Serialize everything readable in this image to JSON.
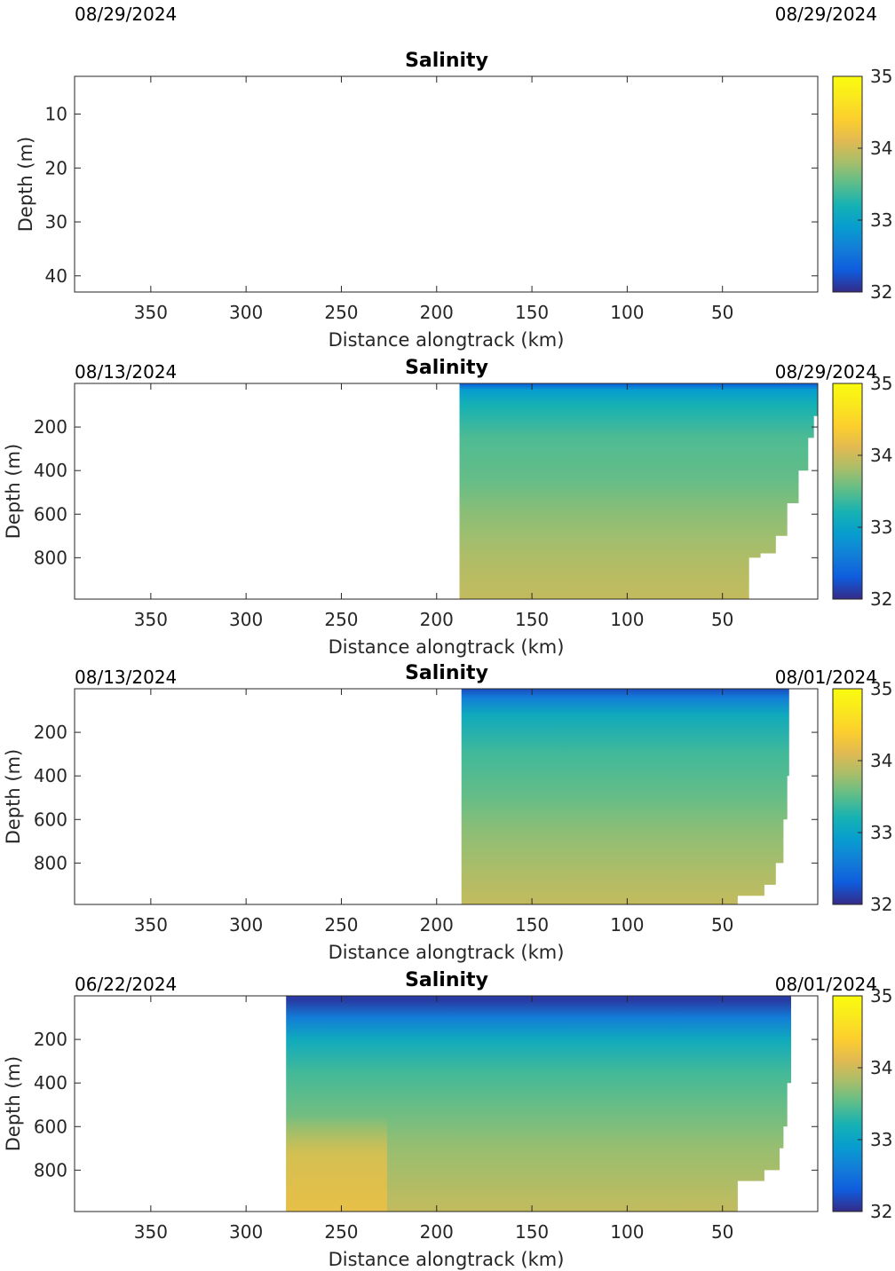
{
  "chart_data": [
    {
      "type": "heatmap",
      "title": "Salinity",
      "date_left": "08/29/2024",
      "date_right": "08/29/2024",
      "xlabel": "Distance alongtrack (km)",
      "ylabel": "Depth (m)",
      "xlim": [
        390,
        0
      ],
      "x_reversed": true,
      "ylim": [
        43,
        3
      ],
      "y_reversed": true,
      "xticks": [
        "350",
        "300",
        "250",
        "200",
        "150",
        "100",
        "50"
      ],
      "yticks": [
        "10",
        "20",
        "30",
        "40"
      ],
      "colorbar": {
        "min": 32,
        "max": 35,
        "ticks": [
          "32",
          "33",
          "34",
          "35"
        ],
        "colormap": "parula"
      },
      "data": {
        "x_start": null,
        "x_end": null,
        "profile": []
      }
    },
    {
      "type": "heatmap",
      "title": "Salinity",
      "date_left": "08/13/2024",
      "date_right": "08/29/2024",
      "xlabel": "Distance alongtrack (km)",
      "ylabel": "Depth (m)",
      "xlim": [
        390,
        0
      ],
      "x_reversed": true,
      "ylim": [
        990,
        0
      ],
      "y_reversed": true,
      "xticks": [
        "350",
        "300",
        "250",
        "200",
        "150",
        "100",
        "50"
      ],
      "yticks": [
        "200",
        "400",
        "600",
        "800"
      ],
      "colorbar": {
        "min": 32,
        "max": 35,
        "ticks": [
          "32",
          "33",
          "34",
          "35"
        ],
        "colormap": "parula"
      },
      "data": {
        "x_start": 188,
        "x_end": 0,
        "profile": [
          {
            "depth": 0,
            "salinity": 32.3
          },
          {
            "depth": 30,
            "salinity": 32.9
          },
          {
            "depth": 100,
            "salinity": 33.2
          },
          {
            "depth": 250,
            "salinity": 33.45
          },
          {
            "depth": 450,
            "salinity": 33.55
          },
          {
            "depth": 600,
            "salinity": 33.7
          },
          {
            "depth": 800,
            "salinity": 33.85
          },
          {
            "depth": 990,
            "salinity": 33.95
          }
        ],
        "bottom_edge": [
          {
            "depth": 0,
            "x": 0
          },
          {
            "depth": 150,
            "x": 2
          },
          {
            "depth": 250,
            "x": 5
          },
          {
            "depth": 400,
            "x": 10
          },
          {
            "depth": 550,
            "x": 16
          },
          {
            "depth": 700,
            "x": 22
          },
          {
            "depth": 780,
            "x": 30
          },
          {
            "depth": 800,
            "x": 36
          },
          {
            "depth": 990,
            "x": 36
          }
        ]
      }
    },
    {
      "type": "heatmap",
      "title": "Salinity",
      "date_left": "08/13/2024",
      "date_right": "08/01/2024",
      "xlabel": "Distance alongtrack (km)",
      "ylabel": "Depth (m)",
      "xlim": [
        390,
        0
      ],
      "x_reversed": true,
      "ylim": [
        990,
        0
      ],
      "y_reversed": true,
      "xticks": [
        "350",
        "300",
        "250",
        "200",
        "150",
        "100",
        "50"
      ],
      "yticks": [
        "200",
        "400",
        "600",
        "800"
      ],
      "colorbar": {
        "min": 32,
        "max": 35,
        "ticks": [
          "32",
          "33",
          "34",
          "35"
        ],
        "colormap": "parula"
      },
      "data": {
        "x_start": 187,
        "x_end": 15,
        "profile": [
          {
            "depth": 0,
            "salinity": 32.2
          },
          {
            "depth": 40,
            "salinity": 32.6
          },
          {
            "depth": 120,
            "salinity": 33.1
          },
          {
            "depth": 300,
            "salinity": 33.4
          },
          {
            "depth": 500,
            "salinity": 33.55
          },
          {
            "depth": 650,
            "salinity": 33.7
          },
          {
            "depth": 850,
            "salinity": 33.85
          },
          {
            "depth": 990,
            "salinity": 33.95
          }
        ],
        "bottom_edge": [
          {
            "depth": 0,
            "x": 15
          },
          {
            "depth": 400,
            "x": 16
          },
          {
            "depth": 600,
            "x": 18
          },
          {
            "depth": 800,
            "x": 22
          },
          {
            "depth": 900,
            "x": 28
          },
          {
            "depth": 950,
            "x": 42
          },
          {
            "depth": 990,
            "x": 48
          }
        ]
      }
    },
    {
      "type": "heatmap",
      "title": "Salinity",
      "date_left": "06/22/2024",
      "date_right": "08/01/2024",
      "xlabel": "Distance alongtrack (km)",
      "ylabel": "Depth (m)",
      "xlim": [
        390,
        0
      ],
      "x_reversed": true,
      "ylim": [
        990,
        0
      ],
      "y_reversed": true,
      "xticks": [
        "350",
        "300",
        "250",
        "200",
        "150",
        "100",
        "50"
      ],
      "yticks": [
        "200",
        "400",
        "600",
        "800"
      ],
      "colorbar": {
        "min": 32,
        "max": 35,
        "ticks": [
          "32",
          "33",
          "34",
          "35"
        ],
        "colormap": "parula"
      },
      "data": {
        "x_start": 279,
        "x_end": 14,
        "profile": [
          {
            "depth": 20,
            "salinity": 32.1
          },
          {
            "depth": 100,
            "salinity": 32.6
          },
          {
            "depth": 200,
            "salinity": 33.1
          },
          {
            "depth": 350,
            "salinity": 33.4
          },
          {
            "depth": 500,
            "salinity": 33.55
          },
          {
            "depth": 700,
            "salinity": 33.75
          },
          {
            "depth": 990,
            "salinity": 33.95
          }
        ],
        "high_salinity_zone": {
          "x_from": 279,
          "x_to": 226,
          "depth_from": 550,
          "salinity": 34.2
        },
        "bottom_edge": [
          {
            "depth": 0,
            "x": 14
          },
          {
            "depth": 400,
            "x": 16
          },
          {
            "depth": 600,
            "x": 18
          },
          {
            "depth": 700,
            "x": 20
          },
          {
            "depth": 800,
            "x": 28
          },
          {
            "depth": 850,
            "x": 42
          },
          {
            "depth": 990,
            "x": 42
          }
        ]
      }
    }
  ]
}
